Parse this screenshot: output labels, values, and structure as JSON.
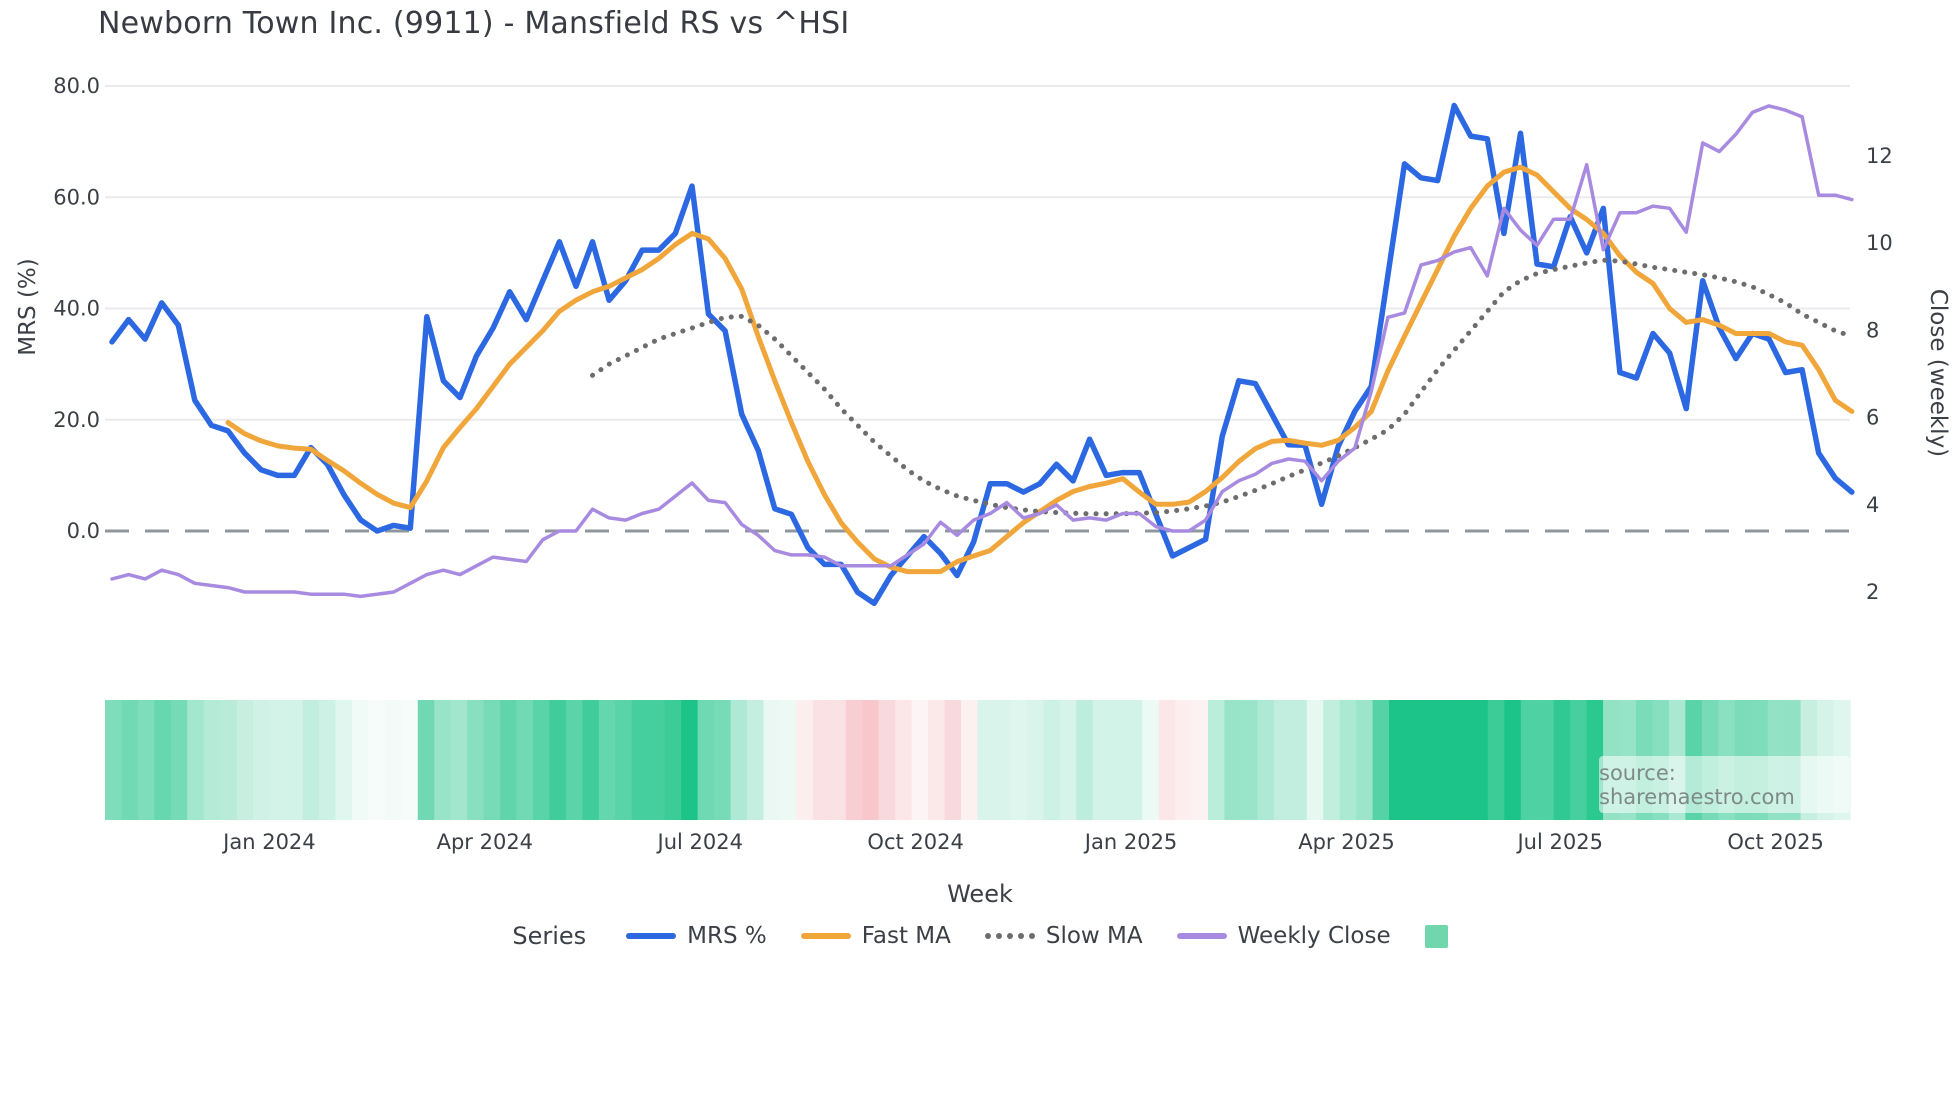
{
  "title": "Newborn Town Inc. (9911) - Mansfield RS vs ^HSI",
  "source_text": "source: sharemaestro.com",
  "axes": {
    "left_title": "MRS (%)",
    "right_title": "Close (weekly)",
    "x_title": "Week",
    "left_ticks": [
      "80.0",
      "60.0",
      "40.0",
      "20.0",
      "0.0"
    ],
    "left_tick_values": [
      80,
      60,
      40,
      20,
      0
    ],
    "right_ticks": [
      "12",
      "10",
      "8",
      "6",
      "4",
      "2"
    ],
    "right_tick_values": [
      12,
      10,
      8,
      6,
      4,
      2
    ],
    "x_ticks": [
      "Jan 2024",
      "Apr 2024",
      "Jul 2024",
      "Oct 2024",
      "Jan 2025",
      "Apr 2025",
      "Jul 2025",
      "Oct 2025"
    ],
    "x_tick_weeks": [
      9.5,
      22.5,
      35.5,
      48.5,
      61.5,
      74.5,
      87.4,
      100.4
    ]
  },
  "legend": {
    "series_label": "Series",
    "items": [
      {
        "label": "MRS %",
        "color": "#2c68e2",
        "style": "solid"
      },
      {
        "label": "Fast MA",
        "color": "#f0a63a",
        "style": "solid"
      },
      {
        "label": "Slow MA",
        "color": "#6d6d6d",
        "style": "dotted"
      },
      {
        "label": "Weekly Close",
        "color": "#a88be0",
        "style": "solid"
      }
    ],
    "swatch_color": "#70d6ab"
  },
  "colors": {
    "grid": "#e9ebee",
    "zero_line": "#8f979e",
    "tick_text": "#3b3f46",
    "heat_positive": "#1dc489",
    "heat_negative": "#f6bfc4",
    "heat_neutral": "#f7fcfa"
  },
  "chart_data": {
    "type": "line",
    "title": "Newborn Town Inc. (9911) - Mansfield RS vs ^HSI",
    "xlabel": "Week",
    "ylabel_left": "MRS (%)",
    "ylabel_right": "Close (weekly)",
    "x_unit": "weekly index, week 0 = late Oct 2023, 106 weeks through early Nov 2025",
    "n_weeks": 106,
    "left_axis_ticks": [
      80,
      60,
      40,
      20,
      0
    ],
    "right_axis_ticks": [
      12,
      10,
      8,
      6,
      4,
      2
    ],
    "grid": true,
    "legend_position": "bottom",
    "series": [
      {
        "name": "MRS %",
        "axis": "left",
        "color": "#2c68e2",
        "style": "solid",
        "width": 5.5,
        "start_index": 0,
        "values": [
          34,
          38,
          34.5,
          41,
          37,
          23.5,
          19,
          18,
          14,
          11,
          10,
          10,
          15,
          12,
          6.5,
          2,
          0,
          1,
          0.5,
          38.5,
          27,
          24,
          31.5,
          36.5,
          43,
          38,
          45,
          52,
          44,
          52,
          41.5,
          45,
          50.5,
          50.5,
          53.5,
          62,
          39,
          36,
          21,
          14.5,
          4,
          3,
          -3,
          -6,
          -6,
          -11,
          -13,
          -8,
          -4.5,
          -1,
          -4,
          -8,
          -2,
          8.5,
          8.5,
          7,
          8.5,
          12,
          9,
          16.5,
          10,
          10.5,
          10.5,
          3,
          -4.5,
          -3,
          -1.5,
          17,
          27,
          26.5,
          21,
          15.5,
          15.4,
          4.8,
          15.2,
          21.5,
          26,
          46,
          66,
          63.5,
          63,
          76.5,
          71,
          70.5,
          53.5,
          71.5,
          48,
          47.5,
          56.5,
          50,
          58,
          28.5,
          27.5,
          35.5,
          32,
          22,
          45,
          36.5,
          31,
          35.5,
          34.5,
          28.5,
          29,
          14,
          9.5,
          7
        ]
      },
      {
        "name": "Fast MA",
        "axis": "left",
        "color": "#f0a63a",
        "style": "solid",
        "width": 5,
        "start_index": 7,
        "values": [
          19.5,
          17.5,
          16.2,
          15.3,
          14.9,
          14.7,
          12.7,
          10.8,
          8.6,
          6.6,
          5,
          4.2,
          9,
          15,
          18.6,
          22,
          26,
          30,
          33,
          36,
          39.5,
          41.5,
          43,
          44,
          45.5,
          47,
          49,
          51.5,
          53.5,
          52.5,
          49,
          43.5,
          35,
          27,
          19.5,
          12.5,
          6.5,
          1.5,
          -2,
          -5,
          -6.5,
          -7.3,
          -7.3,
          -7.3,
          -5.5,
          -4.5,
          -3.5,
          -1,
          1.5,
          3.5,
          5.5,
          7.1,
          8,
          8.6,
          9.4,
          7,
          4.8,
          4.8,
          5.2,
          7.1,
          9.6,
          12.5,
          14.8,
          16.1,
          16.3,
          15.8,
          15.4,
          16.3,
          18.6,
          21.5,
          28.8,
          35,
          41,
          47,
          53,
          58,
          62,
          64.5,
          65.4,
          64,
          61,
          58,
          56,
          53.5,
          49.5,
          46.5,
          44.5,
          40,
          37.5,
          38,
          37,
          35.5,
          35.5,
          35.5,
          34,
          33.4,
          29,
          23.5,
          21.5
        ]
      },
      {
        "name": "Slow MA",
        "axis": "left",
        "color": "#6d6d6d",
        "style": "dotted",
        "width": 5,
        "start_index": 29,
        "values": [
          28,
          30,
          31.5,
          33,
          34.5,
          35.5,
          36.5,
          37.5,
          38.4,
          38.6,
          37,
          34.5,
          31.5,
          28.5,
          25.5,
          22,
          19,
          16,
          13.5,
          11,
          9,
          7.5,
          6.3,
          5.5,
          4.8,
          4.2,
          3.8,
          3.5,
          3.3,
          3.2,
          3.1,
          3.1,
          3.1,
          3.2,
          3.3,
          3.6,
          4,
          4.5,
          5.2,
          6.2,
          7.3,
          8.5,
          9.8,
          11,
          12.2,
          13.5,
          15,
          16.5,
          18.2,
          21,
          25,
          29,
          32.5,
          36,
          39.5,
          43,
          45,
          46.3,
          47,
          47.6,
          48.2,
          48.7,
          48.5,
          48,
          47.4,
          47,
          46.5,
          46.1,
          45.5,
          44.8,
          43.9,
          42.5,
          41,
          39,
          37.5,
          36,
          35
        ]
      },
      {
        "name": "Weekly Close",
        "axis": "right",
        "color": "#a88be0",
        "style": "solid",
        "width": 3.5,
        "start_index": 0,
        "values": [
          2.3,
          2.4,
          2.3,
          2.5,
          2.4,
          2.2,
          2.15,
          2.1,
          2.0,
          2.0,
          2.0,
          2.0,
          1.95,
          1.95,
          1.95,
          1.9,
          1.95,
          2.0,
          2.2,
          2.4,
          2.5,
          2.4,
          2.6,
          2.8,
          2.75,
          2.7,
          3.2,
          3.4,
          3.4,
          3.9,
          3.7,
          3.65,
          3.8,
          3.9,
          4.2,
          4.5,
          4.1,
          4.05,
          3.55,
          3.3,
          2.95,
          2.85,
          2.85,
          2.8,
          2.6,
          2.6,
          2.6,
          2.6,
          2.85,
          3.1,
          3.6,
          3.3,
          3.65,
          3.8,
          4.05,
          3.7,
          3.8,
          4.0,
          3.65,
          3.7,
          3.65,
          3.8,
          3.8,
          3.5,
          3.4,
          3.4,
          3.65,
          4.3,
          4.55,
          4.7,
          4.95,
          5.05,
          5.0,
          4.55,
          5.0,
          5.3,
          6.6,
          8.3,
          8.4,
          9.5,
          9.6,
          9.8,
          9.9,
          9.25,
          10.8,
          10.3,
          9.95,
          10.55,
          10.55,
          11.8,
          9.85,
          10.7,
          10.7,
          10.85,
          10.8,
          10.25,
          12.3,
          12.1,
          12.5,
          13.0,
          13.15,
          13.05,
          12.9,
          11.1,
          11.1,
          11.0
        ]
      }
    ],
    "heatmap_strip": {
      "encodes": "weekly MRS % intensity: green for positive, red/pink for negative, white near zero",
      "derived_from_series": "MRS %",
      "positive_color": "#1dc489",
      "negative_color": "#f6bfc4",
      "neutral_color": "#f7fcfa"
    }
  }
}
